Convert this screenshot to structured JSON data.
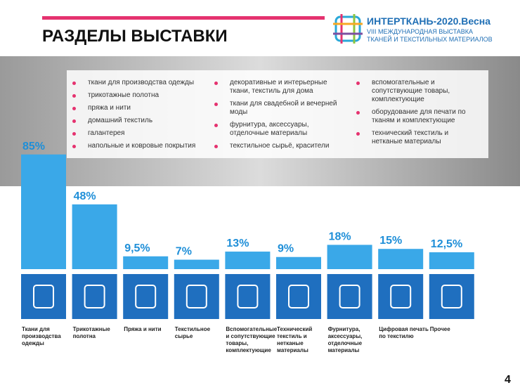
{
  "header": {
    "title": "РАЗДЕЛЫ ВЫСТАВКИ"
  },
  "logo": {
    "name": "ИНТЕРТКАНЬ-2020.Весна",
    "line1": "VIII МЕЖДУНАРОДНАЯ ВЫСТАВКА",
    "line2": "ТКАНЕЙ И ТЕКСТИЛЬНЫХ МАТЕРИАЛОВ"
  },
  "bullets": [
    [
      "ткани для производства одежды",
      "трикотажные полотна",
      "пряжа и нити",
      "домашний текстиль",
      "галантерея",
      "напольные и ковровые покрытия"
    ],
    [
      "декоративные и интерьерные ткани, текстиль для дома",
      "ткани для свадебной и вечерней моды",
      "фурнитура, аксессуары, отделочные материалы",
      "текстильное сырьё, красители"
    ],
    [
      "вспомогательные и сопутствующие товары, комплектующие",
      "оборудование для печати по тканям и комплектующие",
      "технический текстиль и нетканые материалы"
    ]
  ],
  "page_number": "4",
  "chart_data": {
    "type": "bar",
    "categories": [
      "Ткани для производства одежды",
      "Трикотажные полотна",
      "Пряжа и нити",
      "Текстильное сырье",
      "Вспомогательные и сопутствующие товары, комплектующие",
      "Технический текстиль и нетканые материалы",
      "Фурнитура, аксессуары, отделочные материалы",
      "Цифровая печать по текстилю",
      "Прочее"
    ],
    "values": [
      85,
      48,
      9.5,
      7,
      13,
      9,
      18,
      15,
      12.5
    ],
    "value_labels": [
      "85%",
      "48%",
      "9,5%",
      "7%",
      "13%",
      "9%",
      "18%",
      "15%",
      "12,5%"
    ],
    "color": "#3aa8e8"
  }
}
